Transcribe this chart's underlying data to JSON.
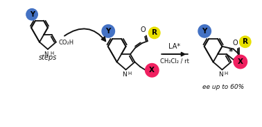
{
  "bg": "#ffffff",
  "blue": "#4472c4",
  "yellow": "#e8e000",
  "red": "#f02060",
  "black": "#111111",
  "lw": 1.3,
  "steps_text": "steps",
  "la_text": "LA*",
  "solvent_text": "CH₂Cl₂ / rt",
  "ee_text": "ee up to 60%",
  "co2h": "CO₂H",
  "O_label": "O",
  "NH_label": "H",
  "star_label": "*",
  "Y_label": "Y",
  "X_label": "X",
  "R_label": "R",
  "N_label": "N"
}
